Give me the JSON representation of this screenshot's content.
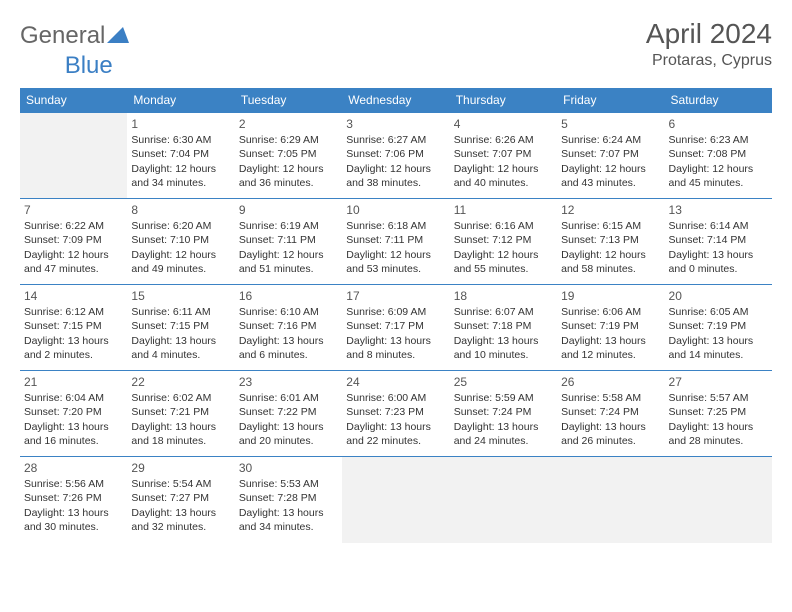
{
  "logo": {
    "text1": "General",
    "text2": "Blue"
  },
  "title": "April 2024",
  "location": "Protaras, Cyprus",
  "colors": {
    "header_bg": "#3b82c4",
    "header_text": "#ffffff",
    "border": "#3b82c4",
    "empty_bg": "#f2f2f2",
    "logo_gray": "#666666",
    "logo_blue": "#3b7fc4",
    "title_color": "#555555",
    "text_color": "#333333"
  },
  "weekdays": [
    "Sunday",
    "Monday",
    "Tuesday",
    "Wednesday",
    "Thursday",
    "Friday",
    "Saturday"
  ],
  "days": {
    "1": {
      "sr": "6:30 AM",
      "ss": "7:04 PM",
      "dl": "12 hours and 34 minutes."
    },
    "2": {
      "sr": "6:29 AM",
      "ss": "7:05 PM",
      "dl": "12 hours and 36 minutes."
    },
    "3": {
      "sr": "6:27 AM",
      "ss": "7:06 PM",
      "dl": "12 hours and 38 minutes."
    },
    "4": {
      "sr": "6:26 AM",
      "ss": "7:07 PM",
      "dl": "12 hours and 40 minutes."
    },
    "5": {
      "sr": "6:24 AM",
      "ss": "7:07 PM",
      "dl": "12 hours and 43 minutes."
    },
    "6": {
      "sr": "6:23 AM",
      "ss": "7:08 PM",
      "dl": "12 hours and 45 minutes."
    },
    "7": {
      "sr": "6:22 AM",
      "ss": "7:09 PM",
      "dl": "12 hours and 47 minutes."
    },
    "8": {
      "sr": "6:20 AM",
      "ss": "7:10 PM",
      "dl": "12 hours and 49 minutes."
    },
    "9": {
      "sr": "6:19 AM",
      "ss": "7:11 PM",
      "dl": "12 hours and 51 minutes."
    },
    "10": {
      "sr": "6:18 AM",
      "ss": "7:11 PM",
      "dl": "12 hours and 53 minutes."
    },
    "11": {
      "sr": "6:16 AM",
      "ss": "7:12 PM",
      "dl": "12 hours and 55 minutes."
    },
    "12": {
      "sr": "6:15 AM",
      "ss": "7:13 PM",
      "dl": "12 hours and 58 minutes."
    },
    "13": {
      "sr": "6:14 AM",
      "ss": "7:14 PM",
      "dl": "13 hours and 0 minutes."
    },
    "14": {
      "sr": "6:12 AM",
      "ss": "7:15 PM",
      "dl": "13 hours and 2 minutes."
    },
    "15": {
      "sr": "6:11 AM",
      "ss": "7:15 PM",
      "dl": "13 hours and 4 minutes."
    },
    "16": {
      "sr": "6:10 AM",
      "ss": "7:16 PM",
      "dl": "13 hours and 6 minutes."
    },
    "17": {
      "sr": "6:09 AM",
      "ss": "7:17 PM",
      "dl": "13 hours and 8 minutes."
    },
    "18": {
      "sr": "6:07 AM",
      "ss": "7:18 PM",
      "dl": "13 hours and 10 minutes."
    },
    "19": {
      "sr": "6:06 AM",
      "ss": "7:19 PM",
      "dl": "13 hours and 12 minutes."
    },
    "20": {
      "sr": "6:05 AM",
      "ss": "7:19 PM",
      "dl": "13 hours and 14 minutes."
    },
    "21": {
      "sr": "6:04 AM",
      "ss": "7:20 PM",
      "dl": "13 hours and 16 minutes."
    },
    "22": {
      "sr": "6:02 AM",
      "ss": "7:21 PM",
      "dl": "13 hours and 18 minutes."
    },
    "23": {
      "sr": "6:01 AM",
      "ss": "7:22 PM",
      "dl": "13 hours and 20 minutes."
    },
    "24": {
      "sr": "6:00 AM",
      "ss": "7:23 PM",
      "dl": "13 hours and 22 minutes."
    },
    "25": {
      "sr": "5:59 AM",
      "ss": "7:24 PM",
      "dl": "13 hours and 24 minutes."
    },
    "26": {
      "sr": "5:58 AM",
      "ss": "7:24 PM",
      "dl": "13 hours and 26 minutes."
    },
    "27": {
      "sr": "5:57 AM",
      "ss": "7:25 PM",
      "dl": "13 hours and 28 minutes."
    },
    "28": {
      "sr": "5:56 AM",
      "ss": "7:26 PM",
      "dl": "13 hours and 30 minutes."
    },
    "29": {
      "sr": "5:54 AM",
      "ss": "7:27 PM",
      "dl": "13 hours and 32 minutes."
    },
    "30": {
      "sr": "5:53 AM",
      "ss": "7:28 PM",
      "dl": "13 hours and 34 minutes."
    }
  },
  "labels": {
    "sunrise": "Sunrise:",
    "sunset": "Sunset:",
    "daylight": "Daylight:"
  },
  "layout": {
    "start_weekday": 1,
    "num_days": 30,
    "rows": 5,
    "cols": 7
  }
}
